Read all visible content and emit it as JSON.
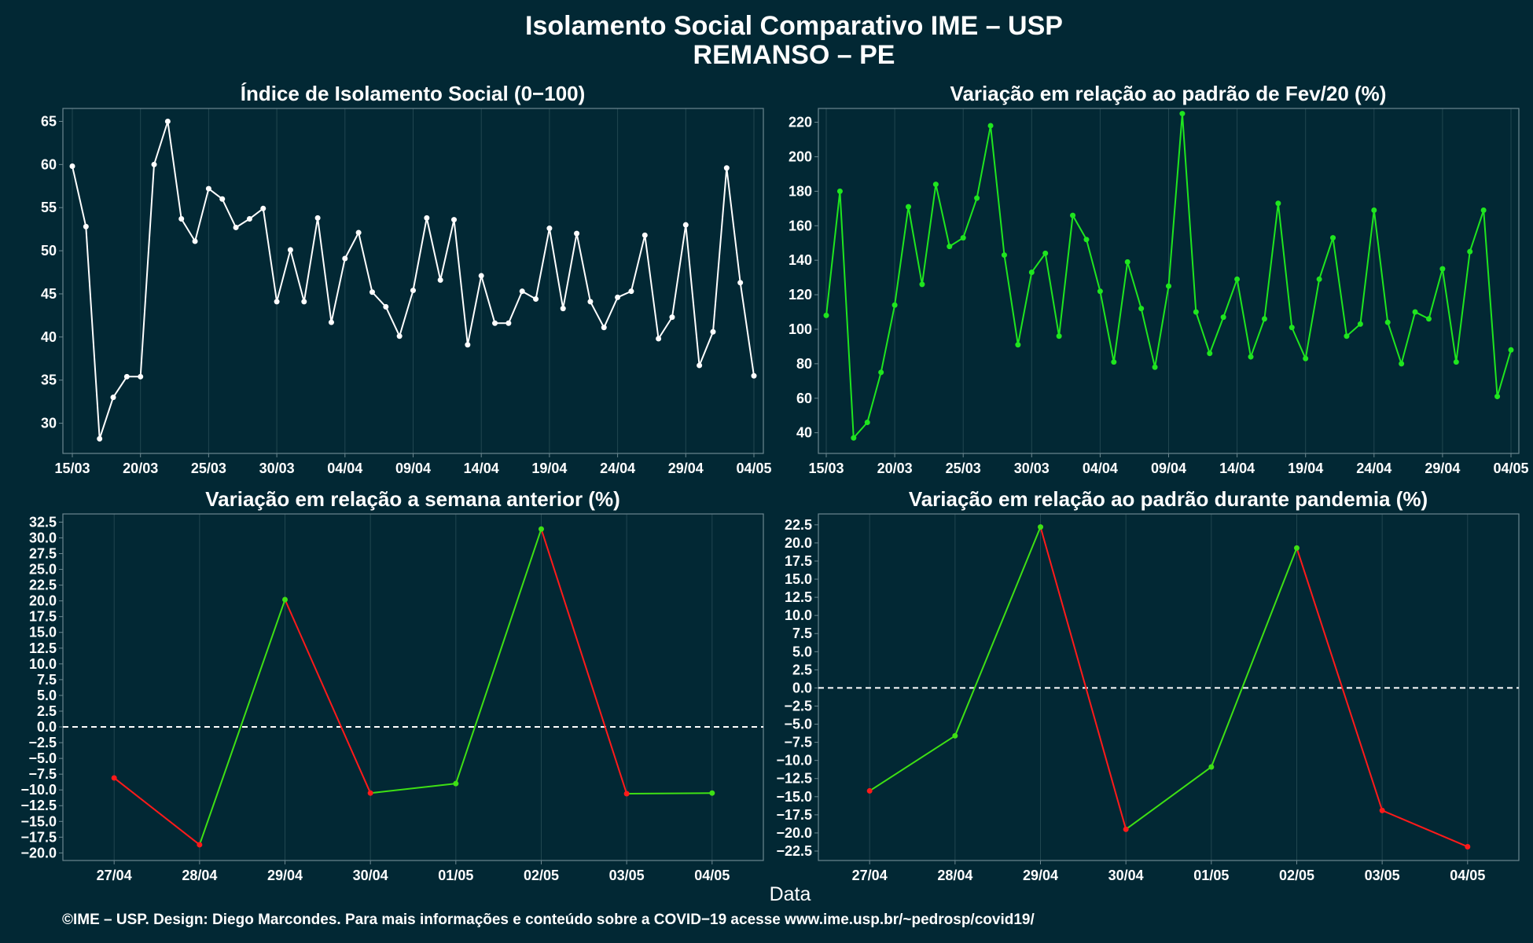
{
  "title_line1": "Isolamento Social Comparativo IME – USP",
  "title_line2": "REMANSO – PE",
  "xlabel": "Data",
  "caption": "©IME – USP. Design: Diego Marcondes. Para mais informações e conteúdo sobre a COVID−19 acesse www.ime.usp.br/~pedrosp/covid19/",
  "colors": {
    "background": "#022834",
    "white_series": "#ffffff",
    "green_series": "#1fe51f",
    "up_segment": "#3ee014",
    "down_segment": "#ff1a1a",
    "panel_border": "#6c8790",
    "grid": "#214650"
  },
  "chart_data": [
    {
      "id": "isolation-index",
      "type": "line",
      "title": "Índice de Isolamento Social (0−100)",
      "x_start": "15/03",
      "x_tick_labels": [
        "15/03",
        "20/03",
        "25/03",
        "30/03",
        "04/04",
        "09/04",
        "14/04",
        "19/04",
        "24/04",
        "29/04",
        "04/05"
      ],
      "x_tick_index": [
        0,
        5,
        10,
        15,
        20,
        25,
        30,
        35,
        40,
        45,
        50
      ],
      "ylim": [
        26.5,
        66.5
      ],
      "yticks": [
        30,
        35,
        40,
        45,
        50,
        55,
        60,
        65
      ],
      "ytick_decimals": 0,
      "color": "#ffffff",
      "values": [
        59.8,
        52.8,
        28.2,
        33.0,
        35.4,
        35.4,
        60.0,
        65.0,
        53.7,
        51.1,
        57.2,
        56.0,
        52.7,
        53.7,
        54.9,
        44.1,
        50.1,
        44.1,
        53.8,
        41.7,
        49.1,
        52.1,
        45.2,
        43.5,
        40.1,
        45.4,
        53.8,
        46.6,
        53.6,
        39.1,
        47.1,
        41.6,
        41.6,
        45.3,
        44.4,
        52.6,
        43.3,
        52.0,
        44.1,
        41.1,
        44.6,
        45.3,
        51.8,
        39.8,
        42.3,
        53.0,
        36.7,
        40.6,
        59.6,
        46.3,
        35.5
      ]
    },
    {
      "id": "variation-feb",
      "type": "line",
      "title": "Variação em relação ao padrão de Fev/20 (%)",
      "x_start": "15/03",
      "x_tick_labels": [
        "15/03",
        "20/03",
        "25/03",
        "30/03",
        "04/04",
        "09/04",
        "14/04",
        "19/04",
        "24/04",
        "29/04",
        "04/05"
      ],
      "x_tick_index": [
        0,
        5,
        10,
        15,
        20,
        25,
        30,
        35,
        40,
        45,
        50
      ],
      "ylim": [
        28,
        228
      ],
      "yticks": [
        40,
        60,
        80,
        100,
        120,
        140,
        160,
        180,
        200,
        220
      ],
      "ytick_decimals": 0,
      "color": "#1fe51f",
      "values": [
        108,
        180,
        37,
        46,
        75,
        114,
        171,
        126,
        184,
        148,
        153,
        176,
        218,
        143,
        91,
        133,
        144,
        96,
        166,
        152,
        122,
        81,
        139,
        112,
        78,
        125,
        225,
        110,
        86,
        107,
        129,
        84,
        106,
        173,
        101,
        83,
        129,
        153,
        96,
        103,
        169,
        104,
        80,
        110,
        106,
        135,
        81,
        145,
        169,
        61,
        88
      ]
    },
    {
      "id": "variation-week",
      "type": "line",
      "title": "Variação em relação a semana anterior (%)",
      "categories": [
        "27/04",
        "28/04",
        "29/04",
        "30/04",
        "01/05",
        "02/05",
        "03/05",
        "04/05"
      ],
      "ylim": [
        -21.2,
        33.8
      ],
      "yticks": [
        -20,
        -17.5,
        -15,
        -12.5,
        -10,
        -7.5,
        -5,
        -2.5,
        0,
        2.5,
        5,
        7.5,
        10,
        12.5,
        15,
        17.5,
        20,
        22.5,
        25,
        27.5,
        30,
        32.5
      ],
      "ytick_decimals": 1,
      "values": [
        -8.1,
        -18.7,
        20.2,
        -10.5,
        -9.0,
        31.4,
        -10.6,
        -10.5
      ],
      "zero_line": true
    },
    {
      "id": "variation-pandemic",
      "type": "line",
      "title": "Variação em relação ao padrão durante pandemia (%)",
      "categories": [
        "27/04",
        "28/04",
        "29/04",
        "30/04",
        "01/05",
        "02/05",
        "03/05",
        "04/05"
      ],
      "ylim": [
        -23.8,
        24.0
      ],
      "yticks": [
        -22.5,
        -20,
        -17.5,
        -15,
        -12.5,
        -10,
        -7.5,
        -5,
        -2.5,
        0,
        2.5,
        5,
        7.5,
        10,
        12.5,
        15,
        17.5,
        20,
        22.5
      ],
      "ytick_decimals": 1,
      "values": [
        -14.2,
        -6.6,
        22.2,
        -19.5,
        -10.9,
        19.3,
        -16.9,
        -21.9
      ],
      "zero_line": true
    }
  ]
}
